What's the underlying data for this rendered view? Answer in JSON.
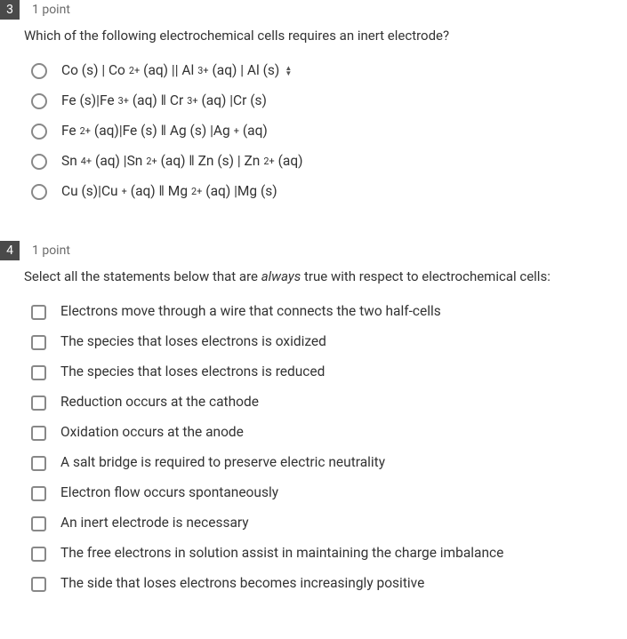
{
  "q3": {
    "number": "3",
    "points": "1 point",
    "text": "Which of the following electrochemical cells requires an inert electrode?",
    "options": [
      {
        "html": "Co (s) | Co<sup>2+</sup> (aq) || Al<sup>3+</sup> (aq) | Al (s)",
        "spinner": true
      },
      {
        "html": "Fe (s)|Fe<sup>3+</sup> (aq) ‖ Cr<sup>3+</sup> (aq) |Cr (s)",
        "spinner": false
      },
      {
        "html": "Fe<sup>2+</sup> (aq)|Fe (s) ‖ Ag (s) |Ag<sup>+</sup> (aq)",
        "spinner": false
      },
      {
        "html": "Sn<sup>4+</sup> (aq) |Sn<sup>2+</sup> (aq) ‖ Zn (s) | Zn<sup>2+</sup> (aq)",
        "spinner": false
      },
      {
        "html": "Cu (s)|Cu<sup>+</sup> (aq) ‖ Mg<sup>2+</sup> (aq) |Mg (s)",
        "spinner": false
      }
    ]
  },
  "q4": {
    "number": "4",
    "points": "1 point",
    "text_pre": "Select all the statements below that are ",
    "text_em": "always",
    "text_post": " true with respect to electrochemical cells:",
    "options": [
      "Electrons move through a wire that connects the two half-cells",
      "The species that loses electrons is oxidized",
      "The species that loses electrons is reduced",
      "Reduction occurs at the cathode",
      "Oxidation occurs at the anode",
      "A salt bridge is required to preserve electric neutrality",
      "Electron flow occurs spontaneously",
      "An inert electrode is necessary",
      "The free electrons in solution assist in maintaining the charge imbalance",
      "The side that loses electrons becomes increasingly positive"
    ]
  }
}
